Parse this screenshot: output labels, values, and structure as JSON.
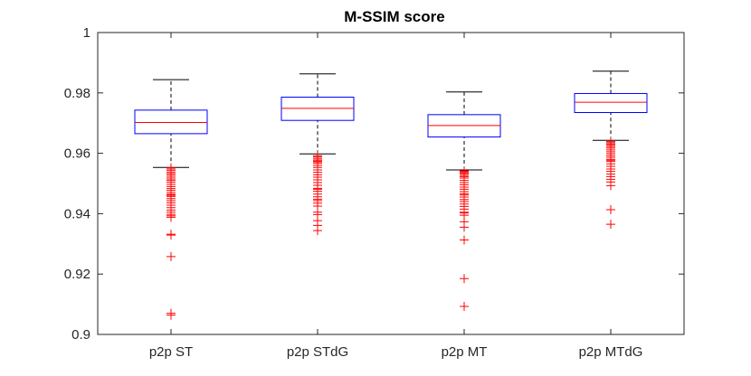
{
  "chart_data": {
    "type": "box",
    "title": "M-SSIM score",
    "xlabel": "",
    "ylabel": "",
    "ylim": [
      0.9,
      1.0
    ],
    "yticks": [
      0.9,
      0.92,
      0.94,
      0.96,
      0.98,
      1.0
    ],
    "ytick_labels": [
      "0.9",
      "0.92",
      "0.94",
      "0.96",
      "0.98",
      "1"
    ],
    "categories": [
      "p2p ST",
      "p2p STdG",
      "p2p MT",
      "p2p MTdG"
    ],
    "boxes": [
      {
        "name": "p2p ST",
        "q1": 0.9665,
        "median": 0.9702,
        "q3": 0.9743,
        "whisker_low": 0.9553,
        "whisker_high": 0.9844,
        "outliers": [
          0.9552,
          0.9548,
          0.9543,
          0.9537,
          0.9532,
          0.9527,
          0.9521,
          0.9515,
          0.951,
          0.9504,
          0.9497,
          0.949,
          0.9483,
          0.9477,
          0.947,
          0.9464,
          0.9461,
          0.9457,
          0.945,
          0.9443,
          0.9436,
          0.9428,
          0.942,
          0.9412,
          0.9405,
          0.9398,
          0.9393,
          0.9388,
          0.9332,
          0.9329,
          0.9258,
          0.907,
          0.9064
        ]
      },
      {
        "name": "p2p STdG",
        "q1": 0.9709,
        "median": 0.9749,
        "q3": 0.9786,
        "whisker_low": 0.9598,
        "whisker_high": 0.9863,
        "outliers": [
          0.9592,
          0.9588,
          0.9583,
          0.9578,
          0.9574,
          0.9572,
          0.9567,
          0.956,
          0.9553,
          0.9545,
          0.9537,
          0.9529,
          0.9521,
          0.9512,
          0.9503,
          0.9494,
          0.9484,
          0.9481,
          0.9474,
          0.9465,
          0.9456,
          0.9448,
          0.9443,
          0.9435,
          0.9425,
          0.9405,
          0.9397,
          0.9377,
          0.9361,
          0.9344
        ]
      },
      {
        "name": "p2p MT",
        "q1": 0.9654,
        "median": 0.9692,
        "q3": 0.9728,
        "whisker_low": 0.9545,
        "whisker_high": 0.9803,
        "outliers": [
          0.9542,
          0.9539,
          0.9535,
          0.9532,
          0.9527,
          0.9523,
          0.9518,
          0.951,
          0.9503,
          0.9496,
          0.9488,
          0.9481,
          0.9473,
          0.9466,
          0.9462,
          0.9455,
          0.9447,
          0.944,
          0.9432,
          0.9424,
          0.9415,
          0.9405,
          0.9402,
          0.9395,
          0.9373,
          0.9355,
          0.9313,
          0.9185,
          0.9093
        ]
      },
      {
        "name": "p2p MTdG",
        "q1": 0.9735,
        "median": 0.9769,
        "q3": 0.9798,
        "whisker_low": 0.9643,
        "whisker_high": 0.9872,
        "outliers": [
          0.9639,
          0.9635,
          0.9631,
          0.9627,
          0.9622,
          0.9617,
          0.9611,
          0.9605,
          0.9599,
          0.9593,
          0.9587,
          0.958,
          0.9577,
          0.9573,
          0.9565,
          0.9557,
          0.9548,
          0.954,
          0.9531,
          0.9523,
          0.9514,
          0.9505,
          0.9493,
          0.9413,
          0.9365
        ]
      }
    ],
    "colors": {
      "box": "#0000ff",
      "median": "#ff0000",
      "whisker": "#000000",
      "outlier": "#ff0000",
      "axis": "#262626"
    }
  }
}
